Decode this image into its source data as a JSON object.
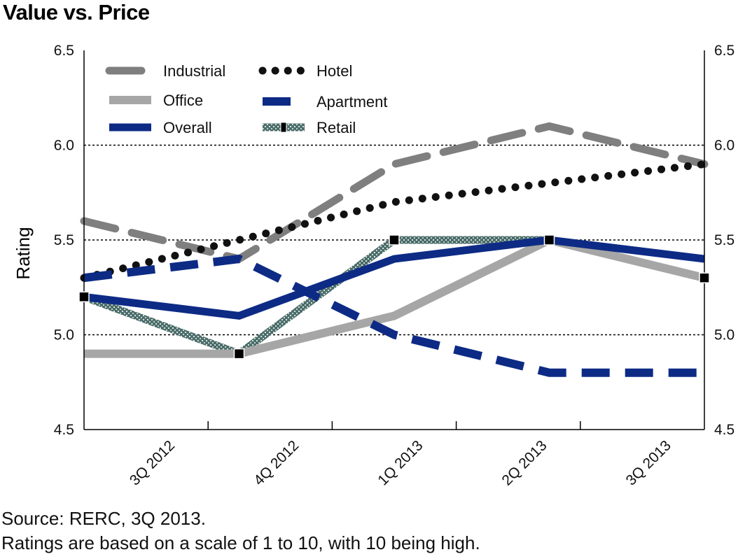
{
  "title": "Value vs. Price",
  "footnotes": {
    "source": "Source: RERC, 3Q 2013.",
    "note": "Ratings are based on a scale of 1 to 10, with 10 being high."
  },
  "chart_data": {
    "type": "line",
    "title": "Value vs. Price",
    "ylabel": "Rating",
    "xlabel": "",
    "ylim": [
      4.5,
      6.5
    ],
    "yticks": [
      "4.5",
      "5.0",
      "5.5",
      "6.0",
      "6.5"
    ],
    "gridlines": [
      5.0,
      5.5,
      6.0
    ],
    "grid": "dotted horizontal",
    "secondary_y_axis": true,
    "legend_position": "top-left inside plot",
    "category_labels": [
      "3Q 2012",
      "4Q 2012",
      "1Q 2013",
      "2Q 2013",
      "3Q 2013"
    ],
    "x": [
      0,
      1.25,
      2.5,
      3.75,
      5.0
    ],
    "series": [
      {
        "name": "Industrial",
        "values": [
          5.6,
          5.4,
          5.9,
          6.1,
          5.9
        ],
        "color": "#7f7f7f",
        "style": "dashed"
      },
      {
        "name": "Hotel",
        "values": [
          5.3,
          5.5,
          5.7,
          5.8,
          5.9
        ],
        "color": "#111111",
        "style": "dotted"
      },
      {
        "name": "Office",
        "values": [
          4.9,
          4.9,
          5.1,
          5.5,
          5.3
        ],
        "color": "#a6a6a6",
        "style": "solid"
      },
      {
        "name": "Apartment",
        "values": [
          5.3,
          5.4,
          5.0,
          4.8,
          4.8
        ],
        "color": "#0d2b85",
        "style": "dashed"
      },
      {
        "name": "Overall",
        "values": [
          5.2,
          5.1,
          5.4,
          5.5,
          5.4
        ],
        "color": "#0d2b85",
        "style": "solid"
      },
      {
        "name": "Retail",
        "values": [
          5.2,
          4.9,
          5.5,
          5.5,
          5.3
        ],
        "color": "#4d6e6b",
        "style": "textured"
      }
    ]
  }
}
